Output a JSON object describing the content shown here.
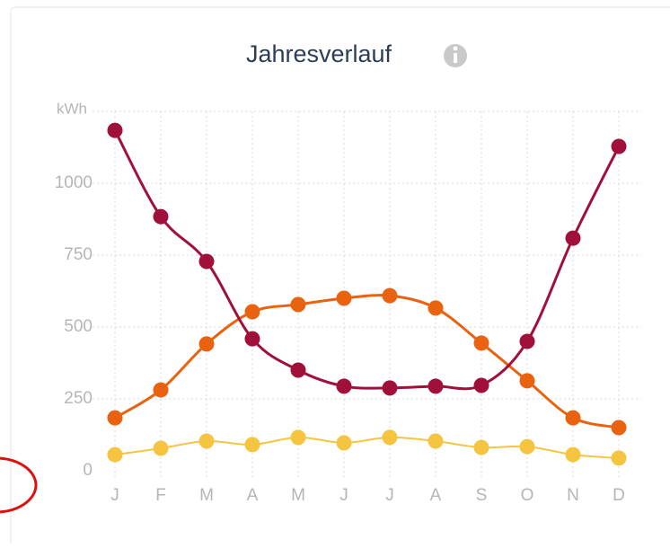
{
  "chart_data": {
    "type": "line",
    "title": "Jahresverlauf",
    "y_label": "kWh",
    "categories": [
      "J",
      "F",
      "M",
      "A",
      "M",
      "J",
      "J",
      "A",
      "S",
      "O",
      "N",
      "D"
    ],
    "ylim": [
      0,
      1250
    ],
    "yticks": [
      0,
      250,
      500,
      750,
      1000
    ],
    "grid": true,
    "series": [
      {
        "color": "#a0103a",
        "values": [
          1184,
          884,
          728,
          459,
          350,
          294,
          288,
          294,
          297,
          450,
          809,
          1128
        ]
      },
      {
        "color": "#e8620f",
        "values": [
          184,
          281,
          441,
          553,
          578,
          600,
          609,
          566,
          444,
          313,
          184,
          150
        ]
      },
      {
        "color": "#f5c542",
        "values": [
          56,
          78,
          103,
          91,
          116,
          97,
          116,
          103,
          81,
          84,
          56,
          44
        ]
      }
    ]
  }
}
